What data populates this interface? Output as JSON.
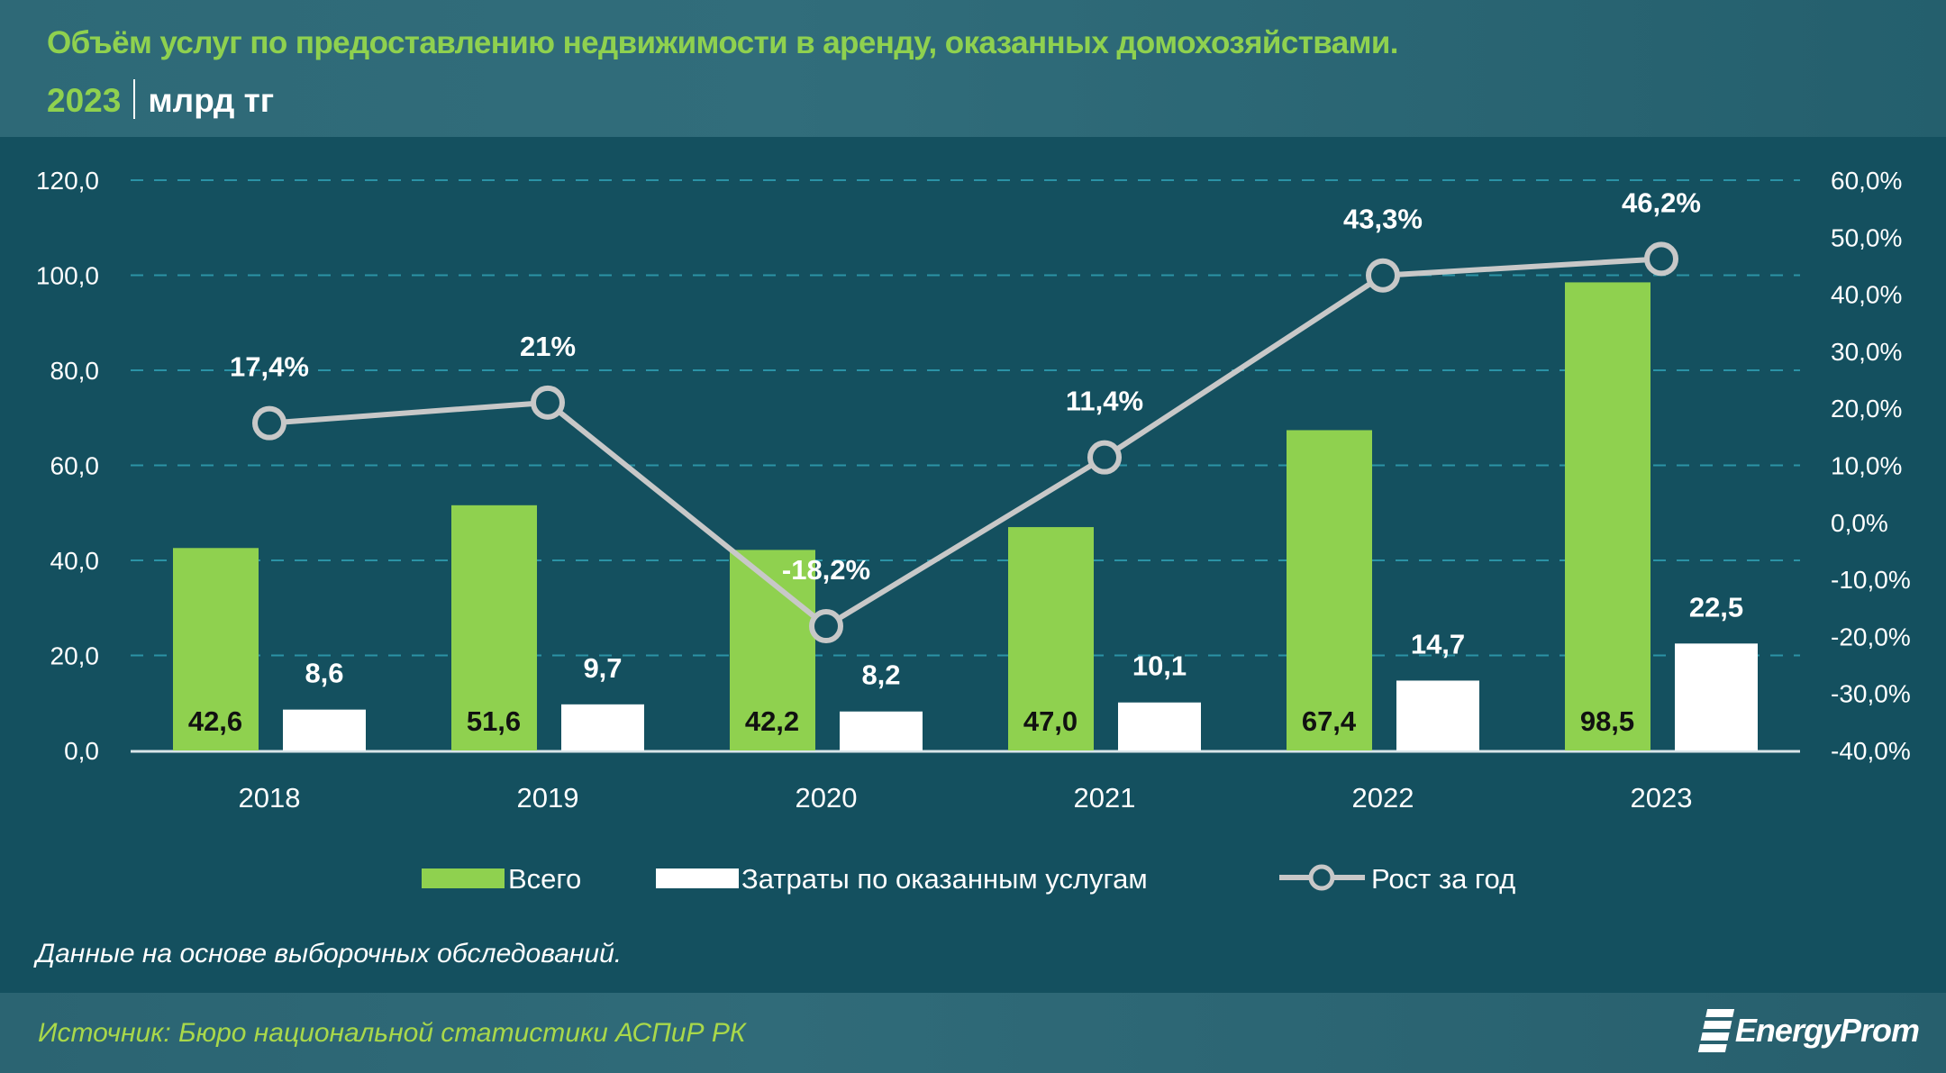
{
  "header": {
    "title": "Объём услуг по предоставлению недвижимости в аренду, оказанных домохозяйствами.",
    "year": "2023",
    "unit": "млрд тг"
  },
  "chart_data": {
    "type": "bar+line",
    "categories": [
      "2018",
      "2019",
      "2020",
      "2021",
      "2022",
      "2023"
    ],
    "series": [
      {
        "name": "Всего",
        "type": "bar",
        "axis": "left",
        "color": "#8fd14f",
        "values": [
          42.6,
          51.6,
          42.2,
          47.0,
          67.4,
          98.5
        ],
        "labels": [
          "42,6",
          "51,6",
          "42,2",
          "47,0",
          "67,4",
          "98,5"
        ]
      },
      {
        "name": "Затраты по оказанным услугам",
        "type": "bar",
        "axis": "left",
        "color": "#ffffff",
        "values": [
          8.6,
          9.7,
          8.2,
          10.1,
          14.7,
          22.5
        ],
        "labels": [
          "8,6",
          "9,7",
          "8,2",
          "10,1",
          "14,7",
          "22,5"
        ]
      },
      {
        "name": "Рост за год",
        "type": "line",
        "axis": "right",
        "color": "#c8c8c8",
        "values": [
          17.4,
          21,
          -18.2,
          11.4,
          43.3,
          46.2
        ],
        "labels": [
          "17,4%",
          "21%",
          "-18,2%",
          "11,4%",
          "43,3%",
          "46,2%"
        ]
      }
    ],
    "ylim": [
      0,
      120
    ],
    "y_ticks": [
      "0,0",
      "20,0",
      "40,0",
      "60,0",
      "80,0",
      "100,0",
      "120,0"
    ],
    "y2lim": [
      -40,
      60
    ],
    "y2_ticks": [
      "-40,0%",
      "-30,0%",
      "-20,0%",
      "-10,0%",
      "0,0%",
      "10,0%",
      "20,0%",
      "30,0%",
      "40,0%",
      "50,0%",
      "60,0%"
    ],
    "grid": true,
    "legend": "bottom"
  },
  "footer": {
    "note": "Данные на основе выборочных обследований.",
    "source": "Источник: Бюро национальной статистики АСПиР РК",
    "logo": "EnergyProm"
  }
}
